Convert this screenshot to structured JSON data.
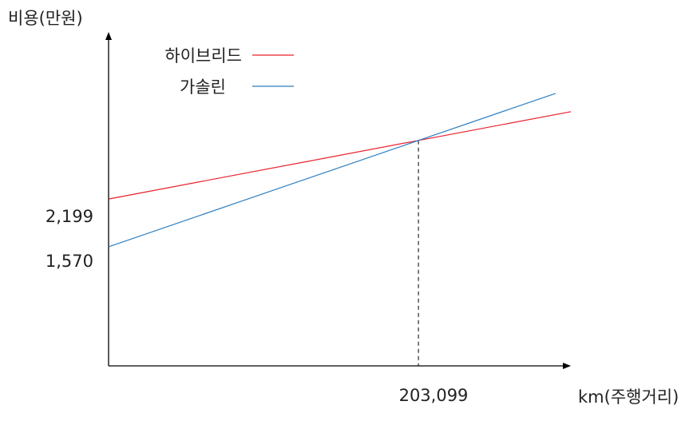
{
  "chart_data": {
    "type": "line",
    "title": "",
    "ylabel": "비용(만원)",
    "xlabel": "km(주행거리)",
    "y_ticks": [
      "2,199",
      "1,570"
    ],
    "x_ticks": [
      "203,099"
    ],
    "series": [
      {
        "name": "하이브리드",
        "color": "#e8212a",
        "points": [
          {
            "x": 0,
            "y": 2199
          },
          {
            "x": 203099,
            "y": 2970
          },
          {
            "x": 303000,
            "y": 3349
          }
        ]
      },
      {
        "name": "가솔린",
        "color": "#2e7fc1",
        "points": [
          {
            "x": 0,
            "y": 1570
          },
          {
            "x": 203099,
            "y": 2970
          },
          {
            "x": 293000,
            "y": 3590
          }
        ]
      }
    ],
    "break_even": {
      "x": 203099,
      "y": 2970
    },
    "xlim": [
      0,
      303000
    ],
    "ylim": [
      0,
      4400
    ],
    "legend_position": "top-left",
    "grid": false
  }
}
